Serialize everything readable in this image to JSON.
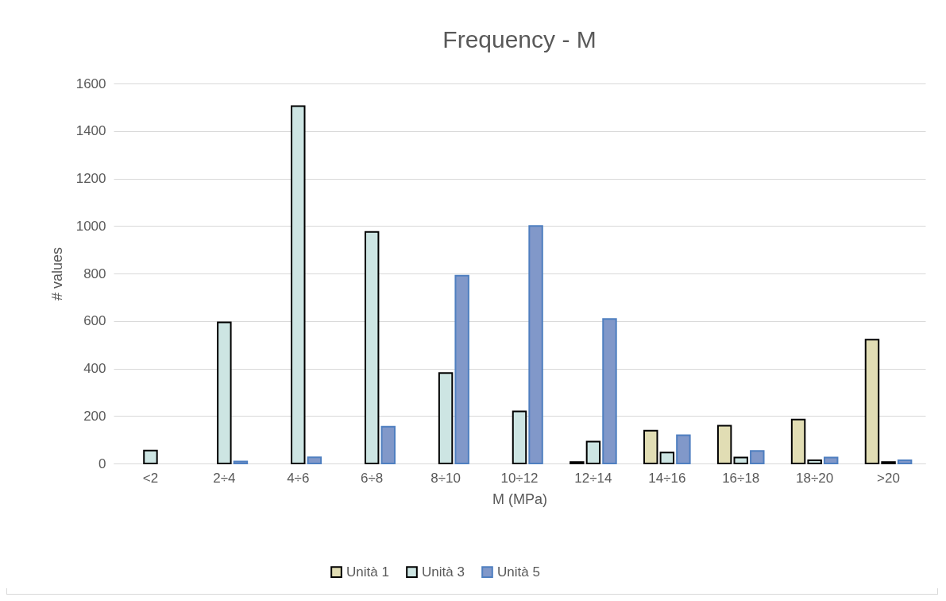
{
  "chart_data": {
    "type": "bar",
    "title": "Frequency -  M",
    "xlabel": "M (MPa)",
    "ylabel": "# values",
    "categories": [
      "<2",
      "2÷4",
      "4÷6",
      "6÷8",
      "8÷10",
      "10÷12",
      "12÷14",
      "14÷16",
      "16÷18",
      "18÷20",
      ">20"
    ],
    "series": [
      {
        "name": "Unità 1",
        "color": "#e1ddb4",
        "values": [
          null,
          null,
          null,
          null,
          null,
          null,
          6,
          138,
          159,
          185,
          521
        ]
      },
      {
        "name": "Unità 3",
        "color": "#cde5e3",
        "values": [
          54,
          594,
          1505,
          975,
          381,
          219,
          92,
          46,
          25,
          13,
          6
        ]
      },
      {
        "name": "Unità 5",
        "color": "#8198c9",
        "values": [
          null,
          8,
          26,
          155,
          791,
          1000,
          608,
          119,
          53,
          25,
          13
        ]
      }
    ],
    "ylim": [
      0,
      1600
    ],
    "yticks": [
      0,
      200,
      400,
      600,
      800,
      1000,
      1200,
      1400,
      1600
    ],
    "grid": "y",
    "legend": "bottom"
  }
}
